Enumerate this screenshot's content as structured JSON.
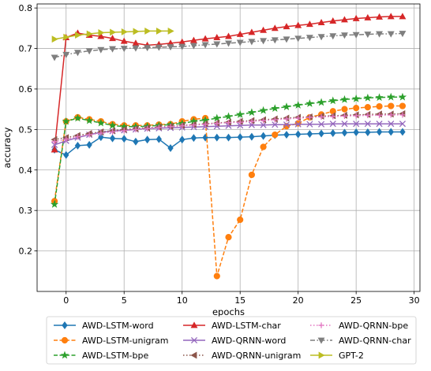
{
  "chart_data": {
    "type": "line",
    "xlabel": "epochs",
    "ylabel": "accuracy",
    "xlim": [
      -2.5,
      30.5
    ],
    "ylim": [
      0.1,
      0.81
    ],
    "xticks": [
      "0",
      "5",
      "10",
      "15",
      "20",
      "25",
      "30"
    ],
    "yticks": [
      "0.2",
      "0.3",
      "0.4",
      "0.5",
      "0.6",
      "0.7",
      "0.8"
    ],
    "grid": true,
    "legend_position": "bottom",
    "series": [
      {
        "name": "AWD-LSTM-word",
        "color": "#1f77b4",
        "marker": "diamond",
        "dash": "solid",
        "x": [
          -1,
          0,
          1,
          2,
          3,
          4,
          5,
          6,
          7,
          8,
          9,
          10,
          11,
          12,
          13,
          14,
          15,
          16,
          17,
          18,
          19,
          20,
          21,
          22,
          23,
          24,
          25,
          26,
          27,
          28,
          29
        ],
        "y": [
          0.45,
          0.437,
          0.46,
          0.462,
          0.481,
          0.478,
          0.477,
          0.47,
          0.475,
          0.476,
          0.454,
          0.475,
          0.479,
          0.48,
          0.48,
          0.48,
          0.481,
          0.482,
          0.484,
          0.486,
          0.487,
          0.488,
          0.489,
          0.49,
          0.491,
          0.492,
          0.493,
          0.493,
          0.494,
          0.494,
          0.494
        ]
      },
      {
        "name": "AWD-LSTM-unigram",
        "color": "#ff7f0e",
        "marker": "circle",
        "dash": "dashed",
        "x": [
          -1,
          0,
          1,
          2,
          3,
          4,
          5,
          6,
          7,
          8,
          9,
          10,
          11,
          12,
          13,
          14,
          15,
          16,
          17,
          18,
          19,
          20,
          21,
          22,
          23,
          24,
          25,
          26,
          27,
          28,
          29
        ],
        "y": [
          0.323,
          0.52,
          0.53,
          0.525,
          0.52,
          0.513,
          0.51,
          0.51,
          0.51,
          0.512,
          0.513,
          0.52,
          0.525,
          0.528,
          0.138,
          0.234,
          0.277,
          0.388,
          0.457,
          0.487,
          0.508,
          0.515,
          0.53,
          0.537,
          0.545,
          0.55,
          0.553,
          0.555,
          0.557,
          0.558,
          0.558
        ]
      },
      {
        "name": "AWD-LSTM-bpe",
        "color": "#2ca02c",
        "marker": "star",
        "dash": "dashed",
        "x": [
          -1,
          0,
          1,
          2,
          3,
          4,
          5,
          6,
          7,
          8,
          9,
          10,
          11,
          12,
          13,
          14,
          15,
          16,
          17,
          18,
          19,
          20,
          21,
          22,
          23,
          24,
          25,
          26,
          27,
          28,
          29
        ],
        "y": [
          0.315,
          0.52,
          0.528,
          0.522,
          0.516,
          0.51,
          0.507,
          0.507,
          0.508,
          0.51,
          0.512,
          0.515,
          0.52,
          0.523,
          0.528,
          0.532,
          0.537,
          0.542,
          0.547,
          0.552,
          0.556,
          0.56,
          0.564,
          0.567,
          0.571,
          0.574,
          0.576,
          0.578,
          0.579,
          0.58,
          0.58
        ]
      },
      {
        "name": "AWD-LSTM-char",
        "color": "#d62728",
        "marker": "triangle-up",
        "dash": "solid",
        "x": [
          -1,
          0,
          1,
          2,
          3,
          4,
          5,
          6,
          7,
          8,
          9,
          10,
          11,
          12,
          13,
          14,
          15,
          16,
          17,
          18,
          19,
          20,
          21,
          22,
          23,
          24,
          25,
          26,
          27,
          28,
          29
        ],
        "y": [
          0.45,
          0.727,
          0.738,
          0.733,
          0.73,
          0.725,
          0.718,
          0.713,
          0.708,
          0.71,
          0.713,
          0.716,
          0.72,
          0.724,
          0.727,
          0.73,
          0.735,
          0.74,
          0.745,
          0.75,
          0.754,
          0.757,
          0.76,
          0.764,
          0.768,
          0.771,
          0.774,
          0.776,
          0.778,
          0.779,
          0.779
        ]
      },
      {
        "name": "AWD-QRNN-word",
        "color": "#9467bd",
        "marker": "x",
        "dash": "solid",
        "x": [
          -1,
          0,
          1,
          2,
          3,
          4,
          5,
          6,
          7,
          8,
          9,
          10,
          11,
          12,
          13,
          14,
          15,
          16,
          17,
          18,
          19,
          20,
          21,
          22,
          23,
          24,
          25,
          26,
          27,
          28,
          29
        ],
        "y": [
          0.462,
          0.472,
          0.48,
          0.487,
          0.493,
          0.496,
          0.498,
          0.5,
          0.502,
          0.503,
          0.504,
          0.505,
          0.506,
          0.507,
          0.508,
          0.509,
          0.51,
          0.511,
          0.511,
          0.512,
          0.512,
          0.513,
          0.513,
          0.513,
          0.514,
          0.514,
          0.514,
          0.514,
          0.514,
          0.514,
          0.514
        ]
      },
      {
        "name": "AWD-QRNN-unigram",
        "color": "#8c564b",
        "marker": "triangle-left",
        "dash": "dotted",
        "x": [
          -1,
          0,
          1,
          2,
          3,
          4,
          5,
          6,
          7,
          8,
          9,
          10,
          11,
          12,
          13,
          14,
          15,
          16,
          17,
          18,
          19,
          20,
          21,
          22,
          23,
          24,
          25,
          26,
          27,
          28,
          29
        ],
        "y": [
          0.475,
          0.48,
          0.485,
          0.49,
          0.494,
          0.497,
          0.5,
          0.502,
          0.504,
          0.506,
          0.508,
          0.51,
          0.512,
          0.514,
          0.516,
          0.518,
          0.52,
          0.522,
          0.524,
          0.526,
          0.528,
          0.53,
          0.531,
          0.533,
          0.534,
          0.535,
          0.536,
          0.537,
          0.538,
          0.538,
          0.539
        ]
      },
      {
        "name": "AWD-QRNN-bpe",
        "color": "#e377c2",
        "marker": "plus",
        "dash": "dotted",
        "x": [
          -1,
          0,
          1,
          2,
          3,
          4,
          5,
          6,
          7,
          8,
          9,
          10,
          11,
          12,
          13,
          14,
          15,
          16,
          17,
          18,
          19,
          20,
          21,
          22,
          23,
          24,
          25,
          26,
          27,
          28,
          29
        ],
        "y": [
          0.47,
          0.476,
          0.482,
          0.487,
          0.491,
          0.494,
          0.497,
          0.5,
          0.502,
          0.505,
          0.507,
          0.509,
          0.511,
          0.513,
          0.515,
          0.517,
          0.518,
          0.52,
          0.522,
          0.524,
          0.526,
          0.528,
          0.53,
          0.531,
          0.532,
          0.533,
          0.534,
          0.535,
          0.535,
          0.536,
          0.536
        ]
      },
      {
        "name": "AWD-QRNN-char",
        "color": "#7f7f7f",
        "marker": "triangle-down",
        "dash": "dashdot",
        "x": [
          -1,
          0,
          1,
          2,
          3,
          4,
          5,
          6,
          7,
          8,
          9,
          10,
          11,
          12,
          13,
          14,
          15,
          16,
          17,
          18,
          19,
          20,
          21,
          22,
          23,
          24,
          25,
          26,
          27,
          28,
          29
        ],
        "y": [
          0.678,
          0.685,
          0.69,
          0.694,
          0.697,
          0.699,
          0.7,
          0.701,
          0.702,
          0.703,
          0.704,
          0.705,
          0.707,
          0.709,
          0.711,
          0.713,
          0.715,
          0.717,
          0.719,
          0.721,
          0.723,
          0.725,
          0.727,
          0.729,
          0.731,
          0.733,
          0.734,
          0.735,
          0.736,
          0.736,
          0.737
        ]
      },
      {
        "name": "GPT-2",
        "color": "#bcbd22",
        "marker": "triangle-right",
        "dash": "solid",
        "x": [
          -1,
          0,
          1,
          2,
          3,
          4,
          5,
          6,
          7,
          8,
          9
        ],
        "y": [
          0.723,
          0.728,
          0.733,
          0.736,
          0.739,
          0.74,
          0.741,
          0.742,
          0.743,
          0.743,
          0.743
        ]
      }
    ]
  }
}
